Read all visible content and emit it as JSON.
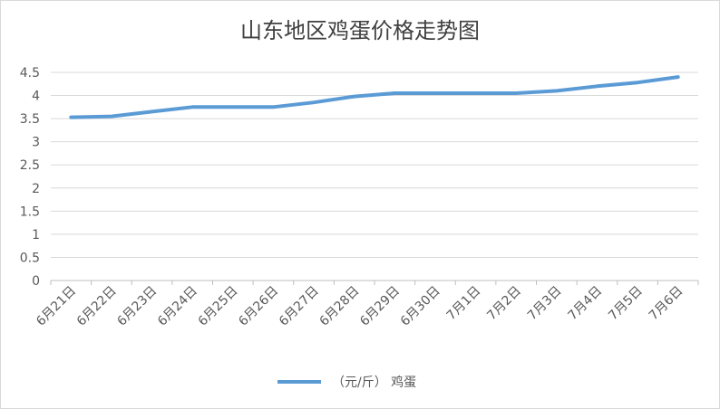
{
  "chart_data": {
    "type": "line",
    "title": "山东地区鸡蛋价格走势图",
    "xlabel": "",
    "ylabel": "",
    "categories": [
      "6月21日",
      "6月22日",
      "6月23日",
      "6月24日",
      "6月25日",
      "6月26日",
      "6月27日",
      "6月28日",
      "6月29日",
      "6月30日",
      "7月1日",
      "7月2日",
      "7月3日",
      "7月4日",
      "7月5日",
      "7月6日"
    ],
    "series": [
      {
        "name": "（元/斤） 鸡蛋",
        "values": [
          3.53,
          3.55,
          3.65,
          3.75,
          3.75,
          3.75,
          3.85,
          3.98,
          4.05,
          4.05,
          4.05,
          4.05,
          4.1,
          4.2,
          4.28,
          4.4
        ]
      }
    ],
    "ylim": [
      0,
      4.5
    ],
    "yticks": [
      "0",
      "0.5",
      "1",
      "1.5",
      "2",
      "2.5",
      "3",
      "3.5",
      "4",
      "4.5"
    ],
    "grid": true,
    "legend": "bottom",
    "line_color": "#5b9bd5"
  }
}
